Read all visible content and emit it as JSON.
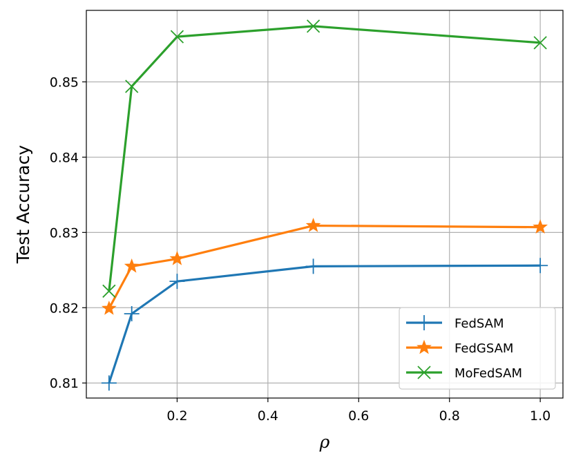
{
  "chart_data": {
    "type": "line",
    "title": "",
    "xlabel": "ρ",
    "ylabel": "Test Accuracy",
    "xlim": [
      0.0,
      1.05
    ],
    "ylim": [
      0.808,
      0.8595
    ],
    "xticks": [
      0.2,
      0.4,
      0.6,
      0.8,
      1.0
    ],
    "xtick_labels": [
      "0.2",
      "0.4",
      "0.6",
      "0.8",
      "1.0"
    ],
    "yticks": [
      0.81,
      0.82,
      0.83,
      0.84,
      0.85
    ],
    "ytick_labels": [
      "0.81",
      "0.82",
      "0.83",
      "0.84",
      "0.85"
    ],
    "grid": true,
    "legend_position": "bottom-right",
    "x": [
      0.05,
      0.1,
      0.2,
      0.5,
      1.0
    ],
    "series": [
      {
        "name": "FedSAM",
        "color": "#1f77b4",
        "marker": "plus",
        "values": [
          0.81,
          0.8192,
          0.8235,
          0.8255,
          0.8256
        ]
      },
      {
        "name": "FedGSAM",
        "color": "#ff7f0e",
        "marker": "star",
        "values": [
          0.8199,
          0.8255,
          0.8265,
          0.8309,
          0.8307
        ]
      },
      {
        "name": "MoFedSAM",
        "color": "#2ca02c",
        "marker": "x",
        "values": [
          0.8222,
          0.8494,
          0.856,
          0.8574,
          0.8552
        ]
      }
    ]
  }
}
